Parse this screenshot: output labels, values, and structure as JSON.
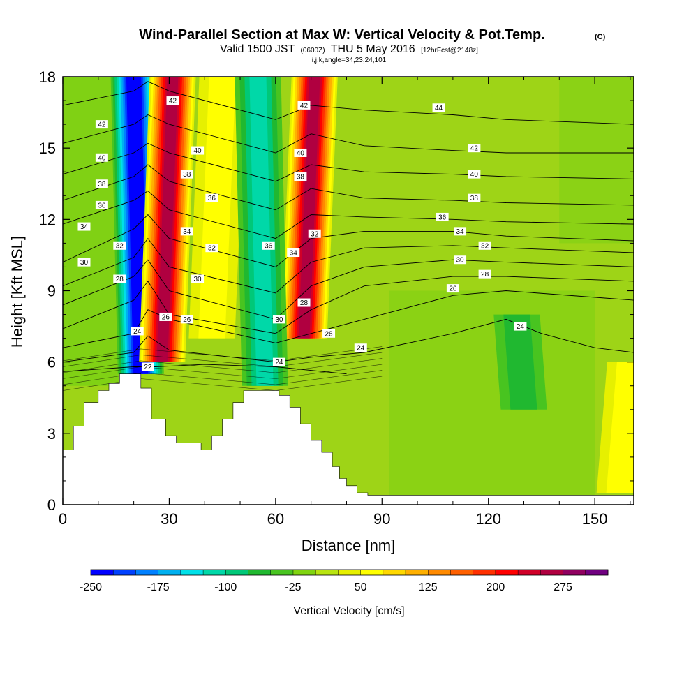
{
  "chart_data": {
    "type": "contour",
    "title": "Wind-Parallel Section at Max W: Vertical Velocity & Pot.Temp.",
    "title_mark": "(C)",
    "subtitle": {
      "valid_label": "Valid 1500 JST",
      "zulu": "(0600Z)",
      "date": "THU 5 May 2016",
      "fcst": "[12hrFcst@2148z]"
    },
    "indices_line": "i,j,k,angle=34,23,24,101",
    "xlabel": "Distance [nm]",
    "ylabel": "Height [Kft MSL]",
    "xlim": [
      0,
      161
    ],
    "ylim": [
      0,
      18
    ],
    "x_ticks": [
      "0",
      "30",
      "60",
      "90",
      "120",
      "150"
    ],
    "y_ticks": [
      "0",
      "3",
      "6",
      "9",
      "12",
      "15",
      "18"
    ],
    "filled_field": "Vertical Velocity [cm/s]",
    "contour_field": "Potential Temperature",
    "colorbar": {
      "label": "Vertical Velocity [cm/s]",
      "min": -250,
      "max": 325,
      "step": 25,
      "tick_labels": [
        "-250",
        "-175",
        "-100",
        "-25",
        "50",
        "125",
        "200",
        "275"
      ],
      "colors": [
        "#0000ff",
        "#0040ff",
        "#0080ff",
        "#00b0f0",
        "#00e0e8",
        "#00d8a8",
        "#00c878",
        "#20b830",
        "#48c420",
        "#80d410",
        "#b8e410",
        "#e6f000",
        "#ffff00",
        "#ffd800",
        "#ffb000",
        "#ff8a00",
        "#ff6000",
        "#ff3000",
        "#ff0000",
        "#d00028",
        "#b00040",
        "#900060",
        "#700080"
      ]
    },
    "w_features": [
      {
        "name": "downdraft",
        "x": 22,
        "y_bottom": 5.5,
        "y_top": 18,
        "w": -250
      },
      {
        "name": "updraft",
        "x": 28,
        "y_bottom": 6,
        "y_top": 18,
        "w": 250
      },
      {
        "name": "updraft",
        "x": 68,
        "y_bottom": 7,
        "y_top": 18,
        "w": 250
      },
      {
        "name": "updraft",
        "x": 42,
        "y_bottom": 7,
        "y_top": 18,
        "w": 40
      },
      {
        "name": "downdraft",
        "x": 57,
        "y_bottom": 5,
        "y_top": 18,
        "w": -110
      },
      {
        "name": "downdraft",
        "x": 130,
        "y_bottom": 4,
        "y_top": 8,
        "w": -40
      },
      {
        "name": "updraft",
        "x": 157,
        "y_bottom": 0.5,
        "y_top": 6,
        "w": 40
      }
    ],
    "terrain": [
      {
        "x": 0,
        "top": 2.3
      },
      {
        "x": 3,
        "top": 3.3
      },
      {
        "x": 6,
        "top": 4.3
      },
      {
        "x": 10,
        "top": 4.8
      },
      {
        "x": 13,
        "top": 5.1
      },
      {
        "x": 16,
        "top": 5.5
      },
      {
        "x": 22,
        "top": 4.9
      },
      {
        "x": 25,
        "top": 3.6
      },
      {
        "x": 29,
        "top": 2.9
      },
      {
        "x": 32,
        "top": 2.6
      },
      {
        "x": 39,
        "top": 2.3
      },
      {
        "x": 42,
        "top": 2.9
      },
      {
        "x": 45,
        "top": 3.6
      },
      {
        "x": 48,
        "top": 4.3
      },
      {
        "x": 51,
        "top": 4.8
      },
      {
        "x": 61,
        "top": 4.6
      },
      {
        "x": 64,
        "top": 4.1
      },
      {
        "x": 67,
        "top": 3.4
      },
      {
        "x": 70,
        "top": 2.7
      },
      {
        "x": 73,
        "top": 2.2
      },
      {
        "x": 76,
        "top": 1.6
      },
      {
        "x": 78,
        "top": 1.1
      },
      {
        "x": 80,
        "top": 0.8
      },
      {
        "x": 83,
        "top": 0.5
      },
      {
        "x": 86,
        "top": 0.4
      },
      {
        "x": 161,
        "top": 0.4
      }
    ],
    "theta_levels": [
      {
        "value": 22,
        "profile": [
          [
            0,
            5.6
          ],
          [
            20,
            5.8
          ],
          [
            26,
            5.8
          ],
          [
            40,
            5.9
          ],
          [
            60,
            5.8
          ],
          [
            80,
            5.5
          ]
        ]
      },
      {
        "value": 24,
        "profile": [
          [
            0,
            6.0
          ],
          [
            20,
            6.4
          ],
          [
            24,
            7.1
          ],
          [
            30,
            6.5
          ],
          [
            60,
            6.0
          ],
          [
            70,
            6.2
          ],
          [
            85,
            6.4
          ],
          [
            110,
            7.2
          ],
          [
            125,
            7.8
          ],
          [
            135,
            7.2
          ],
          [
            150,
            6.6
          ],
          [
            161,
            6.4
          ]
        ]
      },
      {
        "value": 26,
        "profile": [
          [
            0,
            6.6
          ],
          [
            20,
            7.2
          ],
          [
            24,
            8.2
          ],
          [
            30,
            7.8
          ],
          [
            60,
            6.8
          ],
          [
            70,
            7.2
          ],
          [
            85,
            7.8
          ],
          [
            110,
            8.8
          ],
          [
            125,
            9.0
          ],
          [
            161,
            8.6
          ]
        ]
      },
      {
        "value": 28,
        "profile": [
          [
            0,
            7.4
          ],
          [
            20,
            8.6
          ],
          [
            24,
            9.4
          ],
          [
            30,
            8.0
          ],
          [
            60,
            7.2
          ],
          [
            70,
            8.2
          ],
          [
            85,
            9.2
          ],
          [
            110,
            9.6
          ],
          [
            125,
            9.6
          ],
          [
            161,
            9.4
          ]
        ]
      },
      {
        "value": 30,
        "profile": [
          [
            0,
            8.4
          ],
          [
            20,
            9.6
          ],
          [
            24,
            10.3
          ],
          [
            30,
            9.0
          ],
          [
            60,
            7.8
          ],
          [
            70,
            9.2
          ],
          [
            85,
            10.0
          ],
          [
            110,
            10.3
          ],
          [
            125,
            10.2
          ],
          [
            161,
            10.0
          ]
        ]
      },
      {
        "value": 32,
        "profile": [
          [
            0,
            9.2
          ],
          [
            20,
            10.4
          ],
          [
            24,
            11.2
          ],
          [
            30,
            10.0
          ],
          [
            60,
            8.9
          ],
          [
            70,
            10.2
          ],
          [
            85,
            10.8
          ],
          [
            110,
            10.9
          ],
          [
            125,
            10.8
          ],
          [
            161,
            10.6
          ]
        ]
      },
      {
        "value": 34,
        "profile": [
          [
            0,
            10.2
          ],
          [
            20,
            11.6
          ],
          [
            24,
            12.2
          ],
          [
            30,
            11.2
          ],
          [
            60,
            10.0
          ],
          [
            70,
            11.2
          ],
          [
            85,
            11.5
          ],
          [
            110,
            11.5
          ],
          [
            125,
            11.3
          ],
          [
            161,
            11.1
          ]
        ]
      },
      {
        "value": 36,
        "profile": [
          [
            0,
            11.8
          ],
          [
            20,
            12.8
          ],
          [
            24,
            13.2
          ],
          [
            30,
            12.4
          ],
          [
            60,
            11.2
          ],
          [
            70,
            12.2
          ],
          [
            85,
            12.1
          ],
          [
            110,
            12.0
          ],
          [
            125,
            11.9
          ],
          [
            161,
            11.8
          ]
        ]
      },
      {
        "value": 38,
        "profile": [
          [
            0,
            12.8
          ],
          [
            20,
            13.8
          ],
          [
            24,
            14.3
          ],
          [
            30,
            13.6
          ],
          [
            60,
            12.4
          ],
          [
            70,
            13.3
          ],
          [
            85,
            12.9
          ],
          [
            110,
            12.8
          ],
          [
            125,
            12.7
          ],
          [
            161,
            12.6
          ]
        ]
      },
      {
        "value": 40,
        "profile": [
          [
            0,
            13.9
          ],
          [
            20,
            14.8
          ],
          [
            24,
            15.2
          ],
          [
            30,
            14.8
          ],
          [
            60,
            13.6
          ],
          [
            70,
            14.3
          ],
          [
            85,
            14.0
          ],
          [
            110,
            13.9
          ],
          [
            125,
            13.8
          ],
          [
            161,
            13.7
          ]
        ]
      },
      {
        "value": 42,
        "profile": [
          [
            0,
            15.2
          ],
          [
            20,
            16.0
          ],
          [
            24,
            16.4
          ],
          [
            30,
            16.0
          ],
          [
            60,
            14.8
          ],
          [
            70,
            15.6
          ],
          [
            85,
            15.1
          ],
          [
            110,
            14.9
          ],
          [
            125,
            14.8
          ],
          [
            161,
            14.8
          ]
        ]
      },
      {
        "value": 44,
        "profile": [
          [
            0,
            16.8
          ],
          [
            20,
            17.4
          ],
          [
            24,
            17.8
          ],
          [
            30,
            17.4
          ],
          [
            60,
            16.2
          ],
          [
            70,
            16.8
          ],
          [
            85,
            16.6
          ],
          [
            110,
            16.4
          ],
          [
            125,
            16.2
          ],
          [
            161,
            16.0
          ]
        ]
      }
    ],
    "contour_labels": [
      {
        "text": "42",
        "x": 11,
        "y": 16.0
      },
      {
        "text": "40",
        "x": 11,
        "y": 14.6
      },
      {
        "text": "38",
        "x": 11,
        "y": 13.5
      },
      {
        "text": "36",
        "x": 11,
        "y": 12.6
      },
      {
        "text": "34",
        "x": 6,
        "y": 11.7
      },
      {
        "text": "30",
        "x": 6,
        "y": 10.2
      },
      {
        "text": "32",
        "x": 16,
        "y": 10.9
      },
      {
        "text": "28",
        "x": 16,
        "y": 9.5
      },
      {
        "text": "24",
        "x": 21,
        "y": 7.3
      },
      {
        "text": "22",
        "x": 24,
        "y": 5.8
      },
      {
        "text": "42",
        "x": 31,
        "y": 17.0
      },
      {
        "text": "40",
        "x": 38,
        "y": 14.9
      },
      {
        "text": "38",
        "x": 35,
        "y": 13.9
      },
      {
        "text": "36",
        "x": 42,
        "y": 12.9
      },
      {
        "text": "34",
        "x": 35,
        "y": 11.5
      },
      {
        "text": "32",
        "x": 42,
        "y": 10.8
      },
      {
        "text": "30",
        "x": 38,
        "y": 9.5
      },
      {
        "text": "26",
        "x": 29,
        "y": 7.9
      },
      {
        "text": "26",
        "x": 35,
        "y": 7.8
      },
      {
        "text": "42",
        "x": 68,
        "y": 16.8
      },
      {
        "text": "40",
        "x": 67,
        "y": 14.8
      },
      {
        "text": "38",
        "x": 67,
        "y": 13.8
      },
      {
        "text": "32",
        "x": 71,
        "y": 11.4
      },
      {
        "text": "34",
        "x": 65,
        "y": 10.6
      },
      {
        "text": "36",
        "x": 58,
        "y": 10.9
      },
      {
        "text": "28",
        "x": 68,
        "y": 8.5
      },
      {
        "text": "30",
        "x": 61,
        "y": 7.8
      },
      {
        "text": "28",
        "x": 75,
        "y": 7.2
      },
      {
        "text": "24",
        "x": 84,
        "y": 6.6
      },
      {
        "text": "24",
        "x": 61,
        "y": 6.0
      },
      {
        "text": "44",
        "x": 106,
        "y": 16.7
      },
      {
        "text": "42",
        "x": 116,
        "y": 15.0
      },
      {
        "text": "40",
        "x": 116,
        "y": 13.9
      },
      {
        "text": "38",
        "x": 116,
        "y": 12.9
      },
      {
        "text": "36",
        "x": 107,
        "y": 12.1
      },
      {
        "text": "34",
        "x": 112,
        "y": 11.5
      },
      {
        "text": "32",
        "x": 119,
        "y": 10.9
      },
      {
        "text": "30",
        "x": 112,
        "y": 10.3
      },
      {
        "text": "28",
        "x": 119,
        "y": 9.7
      },
      {
        "text": "26",
        "x": 110,
        "y": 9.1
      },
      {
        "text": "24",
        "x": 129,
        "y": 7.5
      }
    ]
  }
}
